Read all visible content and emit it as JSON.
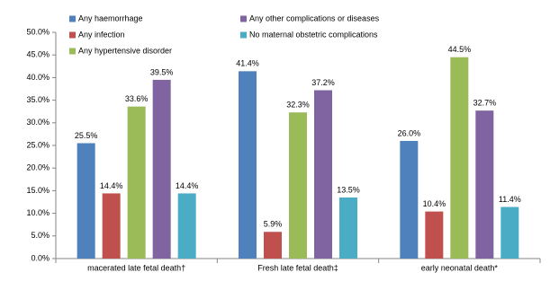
{
  "chart_data": {
    "type": "bar",
    "categories": [
      "macerated late fetal death†",
      "Fresh late fetal death‡",
      "early neonatal death*"
    ],
    "series": [
      {
        "name": "Any haemorrhage",
        "color": "#4f81bd",
        "values": [
          25.5,
          41.4,
          26.0
        ],
        "value_labels": [
          "25.5%",
          "41.4%",
          "26.0%"
        ]
      },
      {
        "name": "Any infection",
        "color": "#c0504d",
        "values": [
          14.4,
          5.9,
          10.4
        ],
        "value_labels": [
          "14.4%",
          "5.9%",
          "10.4%"
        ]
      },
      {
        "name": "Any hypertensive disorder",
        "color": "#9bbb59",
        "values": [
          33.6,
          32.3,
          44.5
        ],
        "value_labels": [
          "33.6%",
          "32.3%",
          "44.5%"
        ]
      },
      {
        "name": "Any other complications or diseases",
        "color": "#8064a2",
        "values": [
          39.5,
          37.2,
          32.7
        ],
        "value_labels": [
          "39.5%",
          "37.2%",
          "32.7%"
        ]
      },
      {
        "name": "No maternal obstetric complications",
        "color": "#4bacc6",
        "values": [
          14.4,
          13.5,
          11.4
        ],
        "value_labels": [
          "14.4%",
          "13.5%",
          "11.4%"
        ]
      }
    ],
    "ylim": [
      0,
      50
    ],
    "yticks": [
      {
        "value": 0,
        "label": "0.0%"
      },
      {
        "value": 5,
        "label": "5.0%"
      },
      {
        "value": 10,
        "label": "10.0%"
      },
      {
        "value": 15,
        "label": "15.0%"
      },
      {
        "value": 20,
        "label": "20.0%"
      },
      {
        "value": 25,
        "label": "25.0%"
      },
      {
        "value": 30,
        "label": "30.0%"
      },
      {
        "value": 35,
        "label": "35.0%"
      },
      {
        "value": 40,
        "label": "40.0%"
      },
      {
        "value": 45,
        "label": "45.0%"
      },
      {
        "value": 50,
        "label": "50.0%"
      }
    ],
    "grid": false
  }
}
